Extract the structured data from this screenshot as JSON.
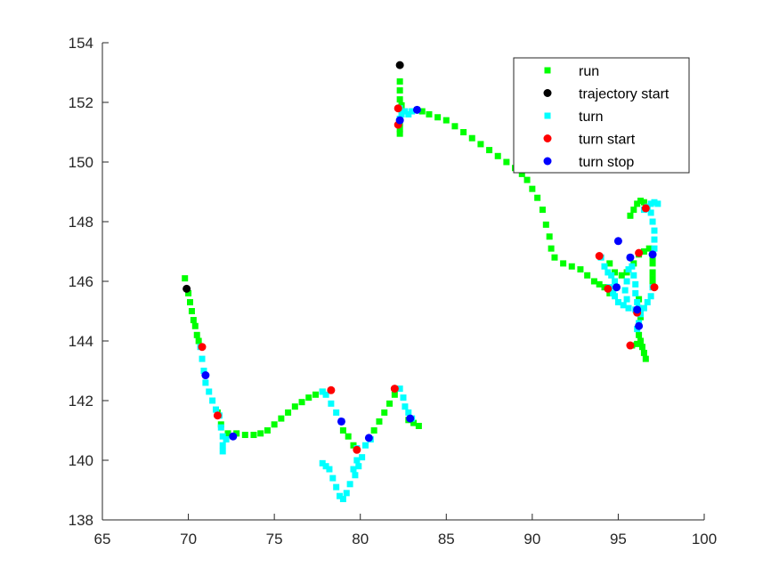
{
  "chart_data": {
    "type": "scatter",
    "title": "",
    "xlabel": "",
    "ylabel": "",
    "xlim": [
      65,
      100
    ],
    "ylim": [
      138,
      154
    ],
    "xticks": [
      65,
      70,
      75,
      80,
      85,
      90,
      95,
      100
    ],
    "yticks": [
      138,
      140,
      142,
      144,
      146,
      148,
      150,
      152,
      154
    ],
    "grid": false,
    "legend_position": "top-right",
    "legend": [
      {
        "label": "run",
        "series": "run"
      },
      {
        "label": "trajectory start",
        "series": "trajectory_start"
      },
      {
        "label": "turn",
        "series": "turn"
      },
      {
        "label": "turn start",
        "series": "turn_start"
      },
      {
        "label": "turn stop",
        "series": "turn_stop"
      }
    ],
    "series": {
      "run": {
        "marker": "square",
        "color": "#00ff00",
        "segments": [
          [
            [
              69.8,
              146.1
            ],
            [
              70.0,
              145.6
            ],
            [
              70.1,
              145.3
            ],
            [
              70.2,
              145.0
            ],
            [
              70.3,
              144.7
            ],
            [
              70.4,
              144.5
            ],
            [
              70.5,
              144.2
            ],
            [
              70.6,
              144.0
            ]
          ],
          [
            [
              71.7,
              141.6
            ],
            [
              71.9,
              141.2
            ]
          ],
          [
            [
              72.3,
              140.9
            ],
            [
              72.8,
              140.9
            ],
            [
              73.3,
              140.85
            ],
            [
              73.8,
              140.85
            ],
            [
              74.2,
              140.9
            ],
            [
              74.6,
              141.0
            ],
            [
              75.0,
              141.2
            ],
            [
              75.4,
              141.4
            ],
            [
              75.8,
              141.6
            ],
            [
              76.2,
              141.8
            ],
            [
              76.6,
              141.95
            ],
            [
              77.0,
              142.1
            ],
            [
              77.4,
              142.2
            ],
            [
              77.8,
              142.3
            ]
          ],
          [
            [
              79.0,
              141.0
            ],
            [
              79.3,
              140.8
            ],
            [
              79.6,
              140.5
            ]
          ],
          [
            [
              80.8,
              141.0
            ],
            [
              81.1,
              141.3
            ],
            [
              81.4,
              141.6
            ],
            [
              81.7,
              141.9
            ],
            [
              82.0,
              142.2
            ]
          ],
          [
            [
              82.8,
              141.35
            ],
            [
              83.1,
              141.25
            ],
            [
              83.4,
              141.15
            ]
          ],
          [
            [
              82.3,
              152.7
            ],
            [
              82.3,
              152.4
            ],
            [
              82.3,
              152.1
            ],
            [
              82.4,
              151.9
            ]
          ],
          [
            [
              82.3,
              151.3
            ],
            [
              82.3,
              151.1
            ],
            [
              82.3,
              150.95
            ]
          ],
          [
            [
              83.6,
              151.7
            ],
            [
              84.0,
              151.6
            ],
            [
              84.5,
              151.5
            ],
            [
              85.0,
              151.4
            ],
            [
              85.5,
              151.2
            ],
            [
              86.0,
              151.0
            ],
            [
              86.5,
              150.8
            ],
            [
              87.0,
              150.6
            ],
            [
              87.5,
              150.4
            ],
            [
              88.0,
              150.2
            ],
            [
              88.5,
              150.0
            ],
            [
              89.0,
              149.8
            ],
            [
              89.4,
              149.6
            ],
            [
              89.7,
              149.4
            ],
            [
              90.0,
              149.1
            ],
            [
              90.3,
              148.8
            ],
            [
              90.6,
              148.4
            ],
            [
              90.8,
              147.9
            ],
            [
              91.0,
              147.5
            ],
            [
              91.1,
              147.1
            ],
            [
              91.3,
              146.8
            ],
            [
              91.8,
              146.6
            ],
            [
              92.3,
              146.5
            ],
            [
              92.8,
              146.4
            ],
            [
              93.2,
              146.2
            ],
            [
              93.6,
              146.0
            ],
            [
              93.9,
              145.9
            ],
            [
              94.2,
              145.8
            ],
            [
              94.5,
              145.6
            ]
          ],
          [
            [
              94.5,
              146.6
            ],
            [
              94.8,
              146.3
            ],
            [
              95.2,
              146.2
            ],
            [
              95.5,
              146.3
            ],
            [
              95.9,
              146.6
            ],
            [
              96.2,
              146.9
            ],
            [
              96.5,
              147.0
            ]
          ],
          [
            [
              95.7,
              148.2
            ],
            [
              95.9,
              148.4
            ],
            [
              96.1,
              148.6
            ],
            [
              96.3,
              148.7
            ],
            [
              96.5,
              148.65
            ]
          ],
          [
            [
              96.8,
              147.1
            ],
            [
              97.0,
              146.8
            ],
            [
              97.0,
              146.6
            ],
            [
              97.0,
              146.3
            ],
            [
              97.0,
              146.1
            ],
            [
              97.0,
              145.9
            ]
          ],
          [
            [
              96.2,
              145.4
            ],
            [
              96.2,
              145.1
            ],
            [
              96.3,
              144.8
            ]
          ],
          [
            [
              96.2,
              144.2
            ],
            [
              96.3,
              144.0
            ],
            [
              96.4,
              143.8
            ],
            [
              96.5,
              143.6
            ],
            [
              96.6,
              143.4
            ]
          ],
          [
            [
              95.8,
              143.85
            ],
            [
              96.1,
              143.9
            ]
          ]
        ]
      },
      "trajectory_start": {
        "marker": "circle",
        "color": "#000000",
        "points": [
          [
            69.9,
            145.75
          ],
          [
            82.3,
            153.25
          ]
        ]
      },
      "turn": {
        "marker": "square",
        "color": "#00ffff",
        "segments": [
          [
            [
              70.7,
              143.8
            ],
            [
              70.8,
              143.4
            ],
            [
              70.9,
              143.0
            ],
            [
              71.0,
              142.6
            ],
            [
              71.2,
              142.3
            ],
            [
              71.4,
              142.0
            ],
            [
              71.6,
              141.7
            ]
          ],
          [
            [
              71.8,
              141.5
            ],
            [
              71.9,
              141.1
            ],
            [
              72.0,
              140.8
            ],
            [
              72.0,
              140.5
            ],
            [
              72.0,
              140.3
            ],
            [
              72.2,
              140.7
            ],
            [
              72.6,
              140.8
            ]
          ],
          [
            [
              77.8,
              142.3
            ],
            [
              78.0,
              142.2
            ],
            [
              78.3,
              141.9
            ],
            [
              78.6,
              141.6
            ],
            [
              78.9,
              141.3
            ]
          ],
          [
            [
              80.6,
              140.7
            ],
            [
              80.3,
              140.5
            ],
            [
              80.1,
              140.1
            ],
            [
              79.9,
              139.8
            ],
            [
              79.7,
              139.5
            ],
            [
              79.4,
              139.2
            ],
            [
              79.2,
              138.9
            ],
            [
              79.0,
              138.7
            ],
            [
              78.8,
              138.8
            ],
            [
              78.6,
              139.1
            ],
            [
              78.4,
              139.4
            ],
            [
              78.2,
              139.7
            ],
            [
              78.0,
              139.8
            ],
            [
              77.8,
              139.9
            ]
          ],
          [
            [
              79.8,
              140.4
            ],
            [
              79.8,
              140.0
            ],
            [
              79.6,
              139.7
            ]
          ],
          [
            [
              82.3,
              142.4
            ],
            [
              82.5,
              142.1
            ],
            [
              82.6,
              141.8
            ],
            [
              82.8,
              141.6
            ],
            [
              83.0,
              141.4
            ]
          ],
          [
            [
              82.3,
              151.8
            ],
            [
              82.6,
              151.7
            ],
            [
              82.8,
              151.6
            ],
            [
              83.0,
              151.7
            ],
            [
              83.3,
              151.75
            ]
          ],
          [
            [
              82.3,
              151.45
            ],
            [
              82.4,
              151.6
            ]
          ],
          [
            [
              94.0,
              146.8
            ],
            [
              94.2,
              146.5
            ],
            [
              94.4,
              146.3
            ],
            [
              94.6,
              146.2
            ],
            [
              94.8,
              146.0
            ],
            [
              94.9,
              145.8
            ]
          ],
          [
            [
              94.5,
              145.8
            ],
            [
              94.7,
              145.6
            ],
            [
              94.8,
              145.5
            ],
            [
              95.0,
              145.3
            ],
            [
              95.3,
              145.2
            ],
            [
              95.6,
              145.1
            ],
            [
              96.0,
              145.05
            ]
          ],
          [
            [
              95.7,
              146.8
            ],
            [
              95.8,
              146.5
            ],
            [
              95.9,
              146.2
            ],
            [
              96.0,
              145.9
            ],
            [
              96.0,
              145.6
            ],
            [
              96.1,
              145.3
            ],
            [
              96.2,
              145.1
            ]
          ],
          [
            [
              96.5,
              148.4
            ],
            [
              96.7,
              148.5
            ],
            [
              96.9,
              148.6
            ],
            [
              97.1,
              148.65
            ],
            [
              97.3,
              148.6
            ]
          ],
          [
            [
              96.9,
              148.3
            ],
            [
              97.0,
              148.0
            ],
            [
              97.1,
              147.7
            ],
            [
              97.1,
              147.4
            ],
            [
              97.1,
              147.1
            ],
            [
              97.0,
              146.9
            ]
          ],
          [
            [
              97.0,
              145.8
            ],
            [
              96.9,
              145.5
            ],
            [
              96.7,
              145.3
            ],
            [
              96.5,
              145.1
            ],
            [
              96.3,
              144.9
            ],
            [
              96.2,
              144.6
            ],
            [
              96.1,
              144.4
            ]
          ],
          [
            [
              95.6,
              146.4
            ],
            [
              95.5,
              146.0
            ],
            [
              95.4,
              145.7
            ],
            [
              95.5,
              145.4
            ]
          ]
        ]
      },
      "turn_start": {
        "marker": "circle",
        "color": "#ff0000",
        "points": [
          [
            70.8,
            143.8
          ],
          [
            71.7,
            141.5
          ],
          [
            78.3,
            142.35
          ],
          [
            79.8,
            140.35
          ],
          [
            82.0,
            142.4
          ],
          [
            82.2,
            151.8
          ],
          [
            82.2,
            151.25
          ],
          [
            93.9,
            146.85
          ],
          [
            94.4,
            145.75
          ],
          [
            95.7,
            143.85
          ],
          [
            96.2,
            146.95
          ],
          [
            96.1,
            144.95
          ],
          [
            96.6,
            148.45
          ],
          [
            97.1,
            145.8
          ]
        ]
      },
      "turn_stop": {
        "marker": "circle",
        "color": "#0000ff",
        "points": [
          [
            71.0,
            142.85
          ],
          [
            72.6,
            140.8
          ],
          [
            78.9,
            141.3
          ],
          [
            80.5,
            140.75
          ],
          [
            82.9,
            141.4
          ],
          [
            82.3,
            151.4
          ],
          [
            83.3,
            151.75
          ],
          [
            94.9,
            145.8
          ],
          [
            95.0,
            147.35
          ],
          [
            95.7,
            146.8
          ],
          [
            96.1,
            145.05
          ],
          [
            96.2,
            144.5
          ],
          [
            97.0,
            146.9
          ]
        ]
      }
    }
  }
}
